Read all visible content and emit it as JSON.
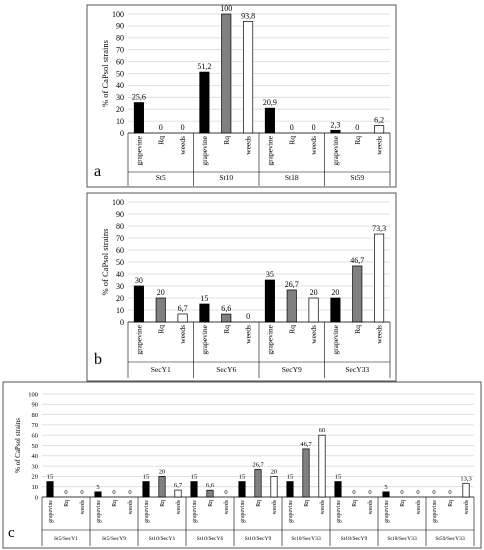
{
  "colors": {
    "grapevine": "#000000",
    "Rq": "#808080",
    "weeds": "#ffffff",
    "outline": "#000000",
    "grid": "#d9d9d9"
  },
  "chart_data": [
    {
      "panel_label": "a",
      "type": "bar",
      "ylabel": "% of CaPsol strains",
      "ylim": [
        0,
        100
      ],
      "yticks": [
        0,
        10,
        20,
        30,
        40,
        50,
        60,
        70,
        80,
        90,
        100
      ],
      "grid": true,
      "subcategories": [
        "grapevine",
        "Rq",
        "weeds"
      ],
      "groups": [
        {
          "label": "St5",
          "values": [
            25.6,
            0,
            0
          ],
          "value_labels": [
            "25,6",
            "0",
            "0"
          ]
        },
        {
          "label": "St10",
          "values": [
            51.2,
            100,
            93.8
          ],
          "value_labels": [
            "51,2",
            "100",
            "93,8"
          ]
        },
        {
          "label": "St18",
          "values": [
            20.9,
            0,
            0
          ],
          "value_labels": [
            "20,9",
            "0",
            "0"
          ]
        },
        {
          "label": "St59",
          "values": [
            2.3,
            0,
            6.2
          ],
          "value_labels": [
            "2,3",
            "0",
            "6,2"
          ]
        }
      ]
    },
    {
      "panel_label": "b",
      "type": "bar",
      "ylabel": "% of CaPsol strains",
      "ylim": [
        0,
        100
      ],
      "yticks": [
        0,
        10,
        20,
        30,
        40,
        50,
        60,
        70,
        80,
        90,
        100
      ],
      "grid": true,
      "subcategories": [
        "grapevine",
        "Rq",
        "weeds"
      ],
      "groups": [
        {
          "label": "SecY1",
          "values": [
            30,
            20,
            6.7
          ],
          "value_labels": [
            "30",
            "20",
            "6,7"
          ]
        },
        {
          "label": "SecY6",
          "values": [
            15,
            6.6,
            0
          ],
          "value_labels": [
            "15",
            "6,6",
            "0"
          ]
        },
        {
          "label": "SecY9",
          "values": [
            35,
            26.7,
            20
          ],
          "value_labels": [
            "35",
            "26,7",
            "20"
          ]
        },
        {
          "label": "SecY33",
          "values": [
            20,
            46.7,
            73.3
          ],
          "value_labels": [
            "20",
            "46,7",
            "73,3"
          ]
        }
      ]
    },
    {
      "panel_label": "c",
      "type": "bar",
      "ylabel": "% of CaPsol strains",
      "ylim": [
        0,
        100
      ],
      "yticks": [
        0,
        10,
        20,
        30,
        40,
        50,
        60,
        70,
        80,
        90,
        100
      ],
      "grid": true,
      "subcategories": [
        "grapevine",
        "Rq",
        "weeds"
      ],
      "groups": [
        {
          "label": "St5/SecY1",
          "values": [
            15,
            0,
            0
          ],
          "value_labels": [
            "15",
            "0",
            "0"
          ]
        },
        {
          "label": "St5/SecY9",
          "values": [
            5,
            0,
            0
          ],
          "value_labels": [
            "5",
            "0",
            "0"
          ]
        },
        {
          "label": "St10/SecY1",
          "values": [
            15,
            20,
            6.7
          ],
          "value_labels": [
            "15",
            "20",
            "6,7"
          ]
        },
        {
          "label": "St10/SecY6",
          "values": [
            15,
            6.6,
            0
          ],
          "value_labels": [
            "15",
            "6,6",
            "0"
          ]
        },
        {
          "label": "St10/SecY9",
          "values": [
            15,
            26.7,
            20
          ],
          "value_labels": [
            "15",
            "26,7",
            "20"
          ]
        },
        {
          "label": "St10/SecY33",
          "values": [
            15,
            46.7,
            60
          ],
          "value_labels": [
            "15",
            "46,7",
            "60"
          ]
        },
        {
          "label": "St18/SecY9",
          "values": [
            15,
            0,
            0
          ],
          "value_labels": [
            "15",
            "0",
            "0"
          ]
        },
        {
          "label": "St18/SecY33",
          "values": [
            5,
            0,
            0
          ],
          "value_labels": [
            "5",
            "0",
            "0"
          ]
        },
        {
          "label": "St59/SecY33",
          "values": [
            0,
            0,
            13.3
          ],
          "value_labels": [
            "0",
            "0",
            "13,3"
          ]
        }
      ]
    }
  ]
}
